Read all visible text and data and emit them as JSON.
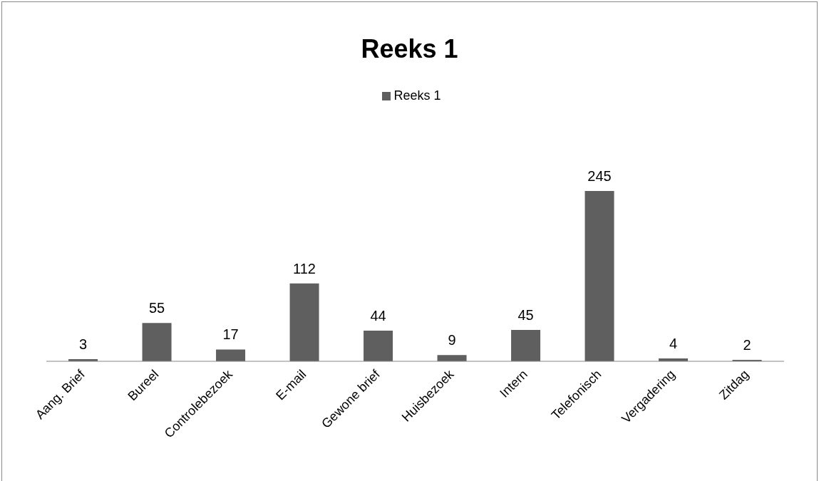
{
  "chart_data": {
    "type": "bar",
    "title": "Reeks 1",
    "categories": [
      "Aang. Brief",
      "Bureel",
      "Controlebezoek",
      "E-mail",
      "Gewone brief",
      "Huisbezoek",
      "Intern",
      "Telefonisch",
      "Vergadering",
      "Zitdag"
    ],
    "series": [
      {
        "name": "Reeks 1",
        "color": "#5f5f5f",
        "values": [
          3,
          55,
          17,
          112,
          44,
          9,
          45,
          245,
          4,
          2
        ]
      }
    ],
    "data_labels": true,
    "legend": "top",
    "grid": false
  }
}
